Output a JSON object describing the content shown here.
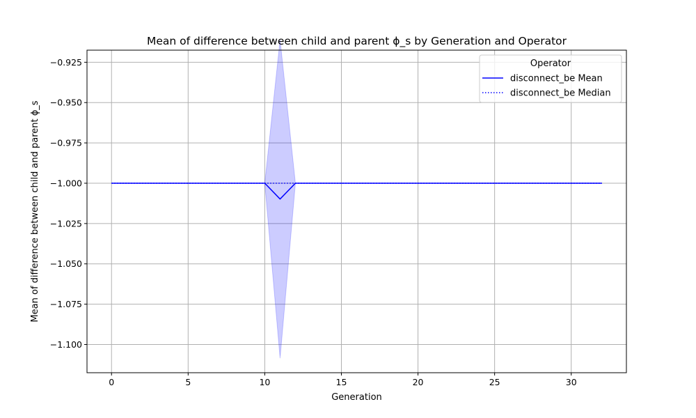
{
  "chart_data": {
    "type": "line",
    "title": "Mean of difference between child and parent ϕ_s by Generation and Operator",
    "xlabel": "Generation",
    "ylabel": "Mean of difference between child and parent ϕ_s",
    "xlim": [
      -1.6,
      33.6
    ],
    "ylim": [
      -1.1175,
      -0.9175
    ],
    "xticks": [
      0,
      5,
      10,
      15,
      20,
      25,
      30
    ],
    "xtick_labels": [
      "0",
      "5",
      "10",
      "15",
      "20",
      "25",
      "30"
    ],
    "yticks": [
      -0.925,
      -0.95,
      -0.975,
      -1.0,
      -1.025,
      -1.05,
      -1.075,
      -1.1
    ],
    "ytick_labels": [
      "−0.925",
      "−0.950",
      "−0.975",
      "−1.000",
      "−1.025",
      "−1.050",
      "−1.075",
      "−1.100"
    ],
    "grid": true,
    "legend": {
      "title": "Operator",
      "placement": "top-right",
      "entries": [
        "disconnect_be Mean",
        "disconnect_be Median"
      ]
    },
    "x": [
      0,
      1,
      2,
      3,
      4,
      5,
      6,
      7,
      8,
      9,
      10,
      11,
      12,
      13,
      14,
      15,
      16,
      17,
      18,
      19,
      20,
      21,
      22,
      23,
      24,
      25,
      26,
      27,
      28,
      29,
      30,
      31,
      32
    ],
    "series": [
      {
        "name": "disconnect_be Mean",
        "style": "solid",
        "color": "#0000ff",
        "values": [
          -1.0,
          -1.0,
          -1.0,
          -1.0,
          -1.0,
          -1.0,
          -1.0,
          -1.0,
          -1.0,
          -1.0,
          -1.0,
          -1.0098,
          -1.0,
          -1.0,
          -1.0,
          -1.0,
          -1.0,
          -1.0,
          -1.0,
          -1.0,
          -1.0,
          -1.0,
          -1.0,
          -1.0,
          -1.0,
          -1.0,
          -1.0,
          -1.0,
          -1.0,
          -1.0,
          -1.0,
          -1.0,
          -1.0
        ],
        "band_lower": [
          -1.0,
          -1.0,
          -1.0,
          -1.0,
          -1.0,
          -1.0,
          -1.0,
          -1.0,
          -1.0,
          -1.0,
          -1.0,
          -1.1085,
          -1.0,
          -1.0,
          -1.0,
          -1.0,
          -1.0,
          -1.0,
          -1.0,
          -1.0,
          -1.0,
          -1.0,
          -1.0,
          -1.0,
          -1.0,
          -1.0,
          -1.0,
          -1.0,
          -1.0,
          -1.0,
          -1.0,
          -1.0,
          -1.0
        ],
        "band_upper": [
          -1.0,
          -1.0,
          -1.0,
          -1.0,
          -1.0,
          -1.0,
          -1.0,
          -1.0,
          -1.0,
          -1.0,
          -1.0,
          -0.911,
          -1.0,
          -1.0,
          -1.0,
          -1.0,
          -1.0,
          -1.0,
          -1.0,
          -1.0,
          -1.0,
          -1.0,
          -1.0,
          -1.0,
          -1.0,
          -1.0,
          -1.0,
          -1.0,
          -1.0,
          -1.0,
          -1.0,
          -1.0,
          -1.0
        ]
      },
      {
        "name": "disconnect_be Median",
        "style": "dotted",
        "color": "#0000ff",
        "values": [
          -1.0,
          -1.0,
          -1.0,
          -1.0,
          -1.0,
          -1.0,
          -1.0,
          -1.0,
          -1.0,
          -1.0,
          -1.0,
          -1.0,
          -1.0,
          -1.0,
          -1.0,
          -1.0,
          -1.0,
          -1.0,
          -1.0,
          -1.0,
          -1.0,
          -1.0,
          -1.0,
          -1.0,
          -1.0,
          -1.0,
          -1.0,
          -1.0,
          -1.0,
          -1.0,
          -1.0,
          -1.0,
          -1.0
        ]
      }
    ],
    "colors": {
      "line": "#0000ff",
      "band": "#0000ff",
      "grid": "#b0b0b0",
      "axes": "#000000"
    }
  }
}
